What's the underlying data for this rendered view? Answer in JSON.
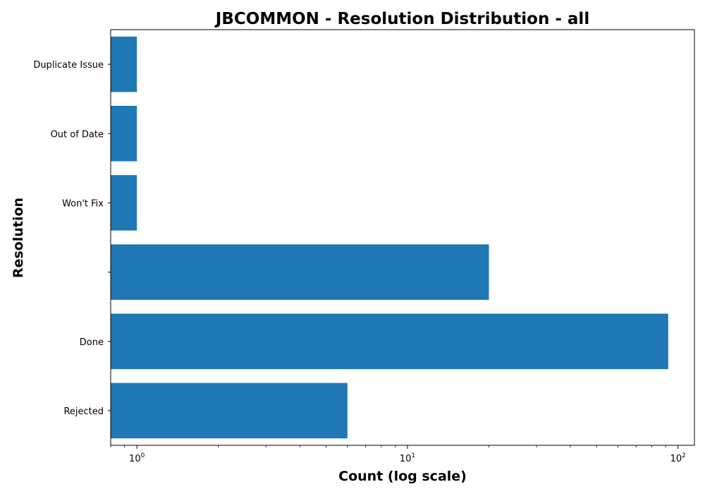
{
  "chart_data": {
    "type": "bar",
    "orientation": "horizontal",
    "title": "JBCOMMON - Resolution Distribution - all",
    "xlabel": "Count (log scale)",
    "ylabel": "Resolution",
    "x_scale": "log",
    "xlim": [
      0.8,
      115
    ],
    "x_ticks": [
      {
        "value": 1,
        "base": "10",
        "exp": "0"
      },
      {
        "value": 10,
        "base": "10",
        "exp": "1"
      },
      {
        "value": 100,
        "base": "10",
        "exp": "2"
      }
    ],
    "categories": [
      "Duplicate Issue",
      "Out of Date",
      "Won't Fix",
      "",
      "Done",
      "Rejected"
    ],
    "values": [
      1,
      1,
      1,
      20,
      92,
      6
    ],
    "color": "#1f77b4",
    "grid": false
  }
}
